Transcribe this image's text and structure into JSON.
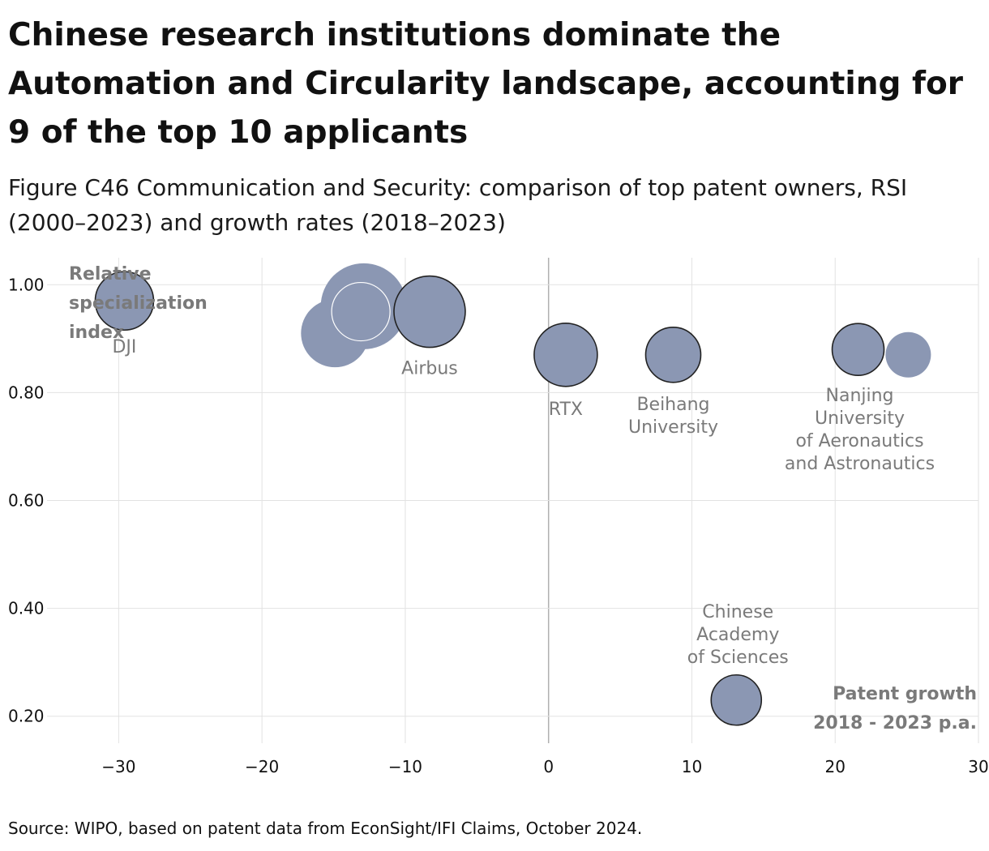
{
  "title": "Chinese research institutions dominate the Automation and Circularity landscape, accounting for 9 of the top 10 applicants",
  "subtitle": "Figure C46 Communication and Security: comparison of top patent owners, RSI (2000–2023) and growth rates (2018–2023)",
  "source": "Source: WIPO, based on patent data from EconSight/IFI Claims, October 2024.",
  "colors": {
    "bubble": "#8b97b3",
    "stroke": "#222222",
    "grid": "#e2e2e2",
    "zero_line": "#b0b0b0",
    "label": "#7a7a7a"
  },
  "chart_data": {
    "type": "scatter",
    "title": "Chinese research institutions dominate the Automation and Circularity landscape, accounting for 9 of the top 10 applicants",
    "xlabel": "Patent growth 2018 - 2023 p.a.",
    "ylabel": "Relative specialization index",
    "xlabel_lines": [
      "Patent growth",
      "2018 - 2023 p.a."
    ],
    "ylabel_lines": [
      "Relative",
      "specialization",
      "index"
    ],
    "xlim": [
      -35,
      30
    ],
    "ylim": [
      0.15,
      1.05
    ],
    "x_ticks": [
      -30,
      -20,
      -10,
      0,
      10,
      20,
      30
    ],
    "x_tick_labels": [
      "−30",
      "−20",
      "−10",
      "0",
      "10",
      "20",
      "30"
    ],
    "y_ticks": [
      0.2,
      0.4,
      0.6,
      0.8,
      1.0
    ],
    "y_tick_labels": [
      "0.20",
      "0.40",
      "0.60",
      "0.80",
      "1.00"
    ],
    "grid": true,
    "points": [
      {
        "name": "DJI",
        "label_lines": [
          "DJI"
        ],
        "x": -29.6,
        "y": 0.97,
        "size": 36,
        "outline": "dark"
      },
      {
        "name": "Unlabeled A",
        "label_lines": [],
        "x": -12.9,
        "y": 0.96,
        "size": 53,
        "outline": "none"
      },
      {
        "name": "Unlabeled B",
        "label_lines": [],
        "x": -14.9,
        "y": 0.91,
        "size": 42,
        "outline": "none"
      },
      {
        "name": "Unlabeled C",
        "label_lines": [],
        "x": -13.1,
        "y": 0.95,
        "size": 36,
        "outline": "white"
      },
      {
        "name": "Airbus",
        "label_lines": [
          "Airbus"
        ],
        "x": -8.3,
        "y": 0.95,
        "size": 44,
        "outline": "dark"
      },
      {
        "name": "RTX",
        "label_lines": [
          "RTX"
        ],
        "x": 1.2,
        "y": 0.87,
        "size": 39,
        "outline": "dark"
      },
      {
        "name": "Beihang University",
        "label_lines": [
          "Beihang",
          "University"
        ],
        "x": 8.7,
        "y": 0.87,
        "size": 34,
        "outline": "dark"
      },
      {
        "name": "Nanjing University of Aeronautics and Astronautics",
        "label_lines": [
          "Nanjing",
          "University",
          "of Aeronautics",
          "and Astronautics"
        ],
        "x": 21.6,
        "y": 0.88,
        "size": 32,
        "outline": "dark"
      },
      {
        "name": "Unlabeled D",
        "label_lines": [],
        "x": 25.1,
        "y": 0.87,
        "size": 28,
        "outline": "none"
      },
      {
        "name": "Chinese Academy of Sciences",
        "label_lines": [
          "Chinese",
          "Academy",
          "of Sciences"
        ],
        "x": 13.1,
        "y": 0.23,
        "size": 31,
        "outline": "dark"
      }
    ]
  }
}
